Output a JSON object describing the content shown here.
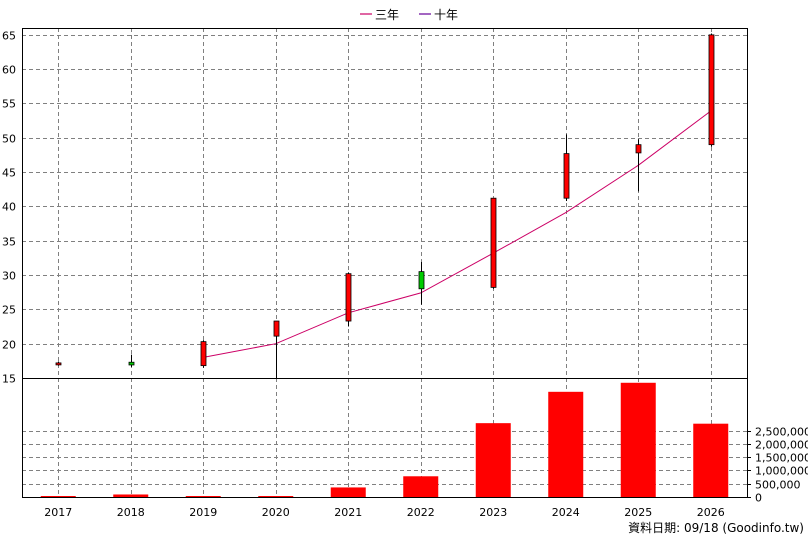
{
  "chart_data": [
    {
      "type": "candlestick",
      "title": "",
      "legend": {
        "placement": "top-center",
        "entries": [
          {
            "label": "三年",
            "color": "#cc0066"
          },
          {
            "label": "十年",
            "color": "#660099"
          }
        ]
      },
      "x": [
        "2017",
        "2018",
        "2019",
        "2020",
        "2021",
        "2022",
        "2023",
        "2024",
        "2025",
        "2026"
      ],
      "yticks": [
        15,
        20,
        25,
        30,
        35,
        40,
        45,
        50,
        55,
        60,
        65
      ],
      "ylim": [
        15,
        66
      ],
      "grid": true,
      "candles": [
        {
          "year": "2017",
          "open": 17.2,
          "high": 17.4,
          "low": 16.8,
          "close": 17.0,
          "color": "#ff0000"
        },
        {
          "year": "2018",
          "open": 17.3,
          "high": 18.4,
          "low": 16.6,
          "close": 16.9,
          "color": "#00cc00"
        },
        {
          "year": "2019",
          "open": 16.8,
          "high": 20.5,
          "low": 16.5,
          "close": 20.3,
          "color": "#ff0000"
        },
        {
          "year": "2020",
          "open": 21.1,
          "high": 23.3,
          "low": 15.0,
          "close": 23.3,
          "color": "#ff0000"
        },
        {
          "year": "2021",
          "open": 23.3,
          "high": 30.4,
          "low": 22.5,
          "close": 30.2,
          "color": "#ff0000"
        },
        {
          "year": "2022",
          "open": 30.5,
          "high": 31.9,
          "low": 25.7,
          "close": 28.0,
          "color": "#00cc00"
        },
        {
          "year": "2023",
          "open": 28.2,
          "high": 41.2,
          "low": 28.0,
          "close": 41.2,
          "color": "#ff0000"
        },
        {
          "year": "2024",
          "open": 41.2,
          "high": 50.5,
          "low": 40.8,
          "close": 47.7,
          "color": "#ff0000"
        },
        {
          "year": "2025",
          "open": 47.8,
          "high": 49.8,
          "low": 42.2,
          "close": 49.0,
          "color": "#ff0000"
        },
        {
          "year": "2026",
          "open": 49.0,
          "high": 65.2,
          "low": 48.7,
          "close": 65.0,
          "color": "#ff0000"
        }
      ],
      "series": [
        {
          "name": "三年",
          "color": "#cc0066",
          "points": [
            [
              "2019",
              18.0
            ],
            [
              "2020",
              20.0
            ],
            [
              "2021",
              24.5
            ],
            [
              "2022",
              27.4
            ],
            [
              "2023",
              33.2
            ],
            [
              "2024",
              39.1
            ],
            [
              "2025",
              46.0
            ],
            [
              "2026",
              53.9
            ]
          ]
        }
      ]
    },
    {
      "type": "bar",
      "categories": [
        "2017",
        "2018",
        "2019",
        "2020",
        "2021",
        "2022",
        "2023",
        "2024",
        "2025",
        "2026"
      ],
      "values": [
        12000,
        95000,
        15000,
        15000,
        360000,
        780000,
        2780000,
        3960000,
        4300000,
        2760000
      ],
      "yticks": [
        0,
        500000,
        1000000,
        1500000,
        2000000,
        2500000
      ],
      "ytick_labels": [
        "0",
        "500,000",
        "1,000,000",
        "1,500,000",
        "2,000,000",
        "2,500,000"
      ],
      "ylim": [
        0,
        4480000
      ],
      "color": "#ff0000",
      "grid": true
    }
  ],
  "footer": {
    "source": "資料日期: 09/18  (Goodinfo.tw)"
  }
}
